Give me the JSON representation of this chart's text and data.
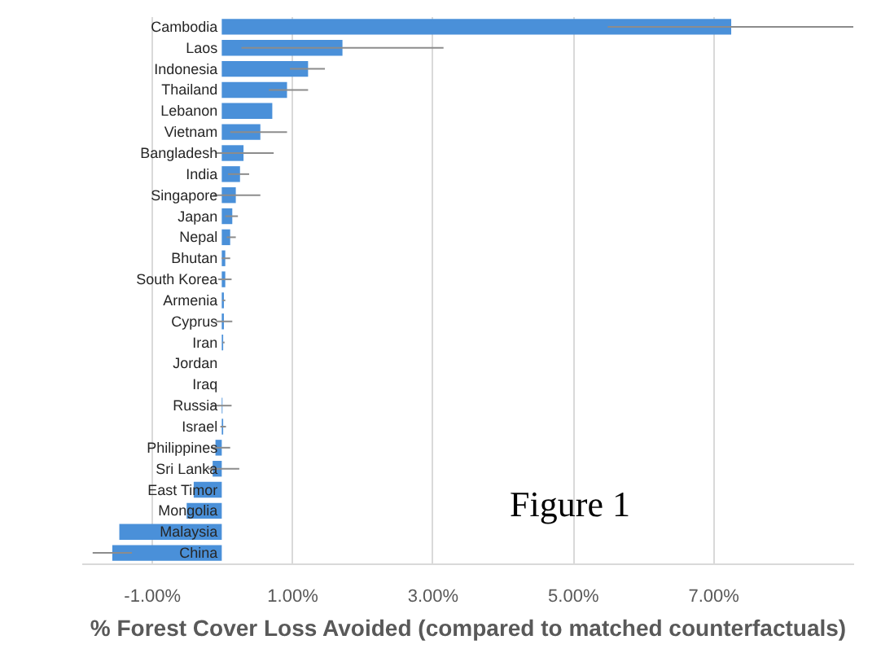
{
  "chart_data": {
    "type": "bar",
    "orientation": "horizontal",
    "xlabel": "% Forest Cover Loss Avoided (compared to matched counterfactuals)",
    "categories": [
      "Cambodia",
      "Laos",
      "Indonesia",
      "Thailand",
      "Lebanon",
      "Vietnam",
      "Bangladesh",
      "India",
      "Singapore",
      "Japan",
      "Nepal",
      "Bhutan",
      "South Korea",
      "Armenia",
      "Cyprus",
      "Iran",
      "Jordan",
      "Iraq",
      "Russia",
      "Israel",
      "Philippines",
      "Sri Lanka",
      "East Timor",
      "Mongolia",
      "Malaysia",
      "China"
    ],
    "values": [
      7.26,
      1.72,
      1.23,
      0.93,
      0.72,
      0.55,
      0.31,
      0.26,
      0.2,
      0.15,
      0.12,
      0.05,
      0.05,
      0.03,
      0.03,
      0.02,
      0,
      0,
      0.01,
      0.02,
      -0.09,
      -0.13,
      -0.4,
      -0.5,
      -1.46,
      -1.56
    ],
    "errors": [
      [
        5.5,
        9.0
      ],
      [
        0.28,
        3.16
      ],
      [
        0.97,
        1.47
      ],
      [
        0.67,
        1.23
      ],
      null,
      [
        0.12,
        0.93
      ],
      [
        -0.09,
        0.74
      ],
      [
        0.09,
        0.39
      ],
      [
        -0.12,
        0.55
      ],
      [
        0.05,
        0.23
      ],
      [
        0.07,
        0.2
      ],
      [
        0,
        0.12
      ],
      [
        -0.05,
        0.14
      ],
      [
        0.01,
        0.05
      ],
      [
        -0.08,
        0.15
      ],
      [
        0.01,
        0.04
      ],
      null,
      null,
      [
        -0.15,
        0.14
      ],
      [
        -0.02,
        0.06
      ],
      [
        -0.15,
        0.12
      ],
      [
        -0.2,
        0.25
      ],
      null,
      null,
      null,
      [
        -1.84,
        -1.28
      ]
    ],
    "color": "#4a90d9",
    "xlim": [
      -2,
      9
    ],
    "xticks": [
      {
        "value": -1,
        "label": "-1.00%"
      },
      {
        "value": 1,
        "label": "1.00%"
      },
      {
        "value": 3,
        "label": "3.00%"
      },
      {
        "value": 5,
        "label": "5.00%"
      },
      {
        "value": 7,
        "label": "7.00%"
      }
    ],
    "grid": "x",
    "annotations": [
      "Figure 1"
    ]
  }
}
